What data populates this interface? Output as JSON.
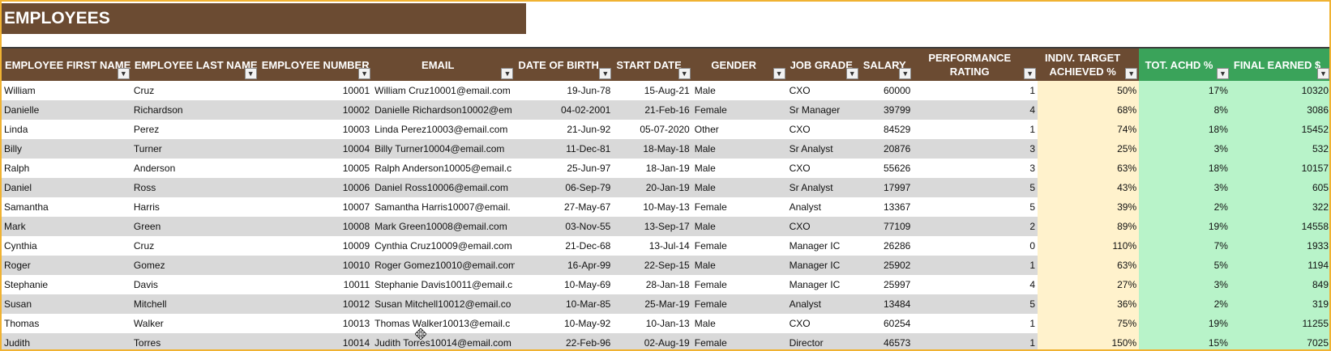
{
  "sheet": {
    "title": "EMPLOYEES",
    "columns": [
      "EMPLOYEE FIRST NAME",
      "EMPLOYEE LAST NAME",
      "EMPLOYEE NUMBER",
      "EMAIL",
      "DATE OF BIRTH",
      "START DATE",
      "GENDER",
      "JOB GRADE",
      "SALARY",
      "PERFORMANCE RATING",
      "INDIV. TARGET ACHIEVED %",
      "TOT. ACHD %",
      "FINAL EARNED $"
    ],
    "filter_icon": "dropdown-arrow-icon",
    "colors": {
      "title_bg": "#6b4b32",
      "green_header": "#3aa35a",
      "cream_col": "#fff2cc",
      "mint_col": "#b8f3c9",
      "border": "#f0b232"
    },
    "rows": [
      [
        "William",
        "Cruz",
        "10001",
        "William Cruz10001@email.com",
        "19-Jun-78",
        "15-Aug-21",
        "Male",
        "CXO",
        "60000",
        "1",
        "50%",
        "17%",
        "10320"
      ],
      [
        "Danielle",
        "Richardson",
        "10002",
        "Danielle Richardson10002@em",
        "04-02-2001",
        "21-Feb-16",
        "Female",
        "Sr Manager",
        "39799",
        "4",
        "68%",
        "8%",
        "3086"
      ],
      [
        "Linda",
        "Perez",
        "10003",
        "Linda Perez10003@email.com",
        "21-Jun-92",
        "05-07-2020",
        "Other",
        "CXO",
        "84529",
        "1",
        "74%",
        "18%",
        "15452"
      ],
      [
        "Billy",
        "Turner",
        "10004",
        "Billy Turner10004@email.com",
        "11-Dec-81",
        "18-May-18",
        "Male",
        "Sr Analyst",
        "20876",
        "3",
        "25%",
        "3%",
        "532"
      ],
      [
        "Ralph",
        "Anderson",
        "10005",
        "Ralph Anderson10005@email.c",
        "25-Jun-97",
        "18-Jan-19",
        "Male",
        "CXO",
        "55626",
        "3",
        "63%",
        "18%",
        "10157"
      ],
      [
        "Daniel",
        "Ross",
        "10006",
        "Daniel Ross10006@email.com",
        "06-Sep-79",
        "20-Jan-19",
        "Male",
        "Sr Analyst",
        "17997",
        "5",
        "43%",
        "3%",
        "605"
      ],
      [
        "Samantha",
        "Harris",
        "10007",
        "Samantha Harris10007@email.",
        "27-May-67",
        "10-May-13",
        "Female",
        "Analyst",
        "13367",
        "5",
        "39%",
        "2%",
        "322"
      ],
      [
        "Mark",
        "Green",
        "10008",
        "Mark Green10008@email.com",
        "03-Nov-55",
        "13-Sep-17",
        "Male",
        "CXO",
        "77109",
        "2",
        "89%",
        "19%",
        "14558"
      ],
      [
        "Cynthia",
        "Cruz",
        "10009",
        "Cynthia Cruz10009@email.com",
        "21-Dec-68",
        "13-Jul-14",
        "Female",
        "Manager IC",
        "26286",
        "0",
        "110%",
        "7%",
        "1933"
      ],
      [
        "Roger",
        "Gomez",
        "10010",
        "Roger Gomez10010@email.com",
        "16-Apr-99",
        "22-Sep-15",
        "Male",
        "Manager IC",
        "25902",
        "1",
        "63%",
        "5%",
        "1194"
      ],
      [
        "Stephanie",
        "Davis",
        "10011",
        "Stephanie Davis10011@email.c",
        "10-May-69",
        "28-Jan-18",
        "Female",
        "Manager IC",
        "25997",
        "4",
        "27%",
        "3%",
        "849"
      ],
      [
        "Susan",
        "Mitchell",
        "10012",
        "Susan Mitchell10012@email.co",
        "10-Mar-85",
        "25-Mar-19",
        "Female",
        "Analyst",
        "13484",
        "5",
        "36%",
        "2%",
        "319"
      ],
      [
        "Thomas",
        "Walker",
        "10013",
        "Thomas Walker10013@email.c",
        "10-May-92",
        "10-Jan-13",
        "Male",
        "CXO",
        "60254",
        "1",
        "75%",
        "19%",
        "11255"
      ],
      [
        "Judith",
        "Torres",
        "10014",
        "Judith Torres10014@email.com",
        "22-Feb-96",
        "02-Aug-19",
        "Female",
        "Director",
        "46573",
        "1",
        "150%",
        "15%",
        "7025"
      ]
    ]
  }
}
